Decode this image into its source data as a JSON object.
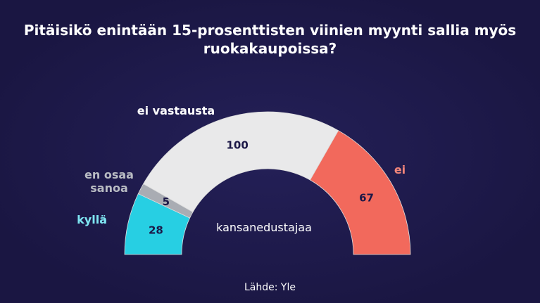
{
  "chart_data": {
    "type": "pie",
    "subtype": "semicircle-donut",
    "title": "Pitäisikö enintään 15-prosenttisten viinien myynti sallia myös ruokakaupoissa?",
    "center_label": "kansanedustajaa",
    "source": "Lähde: Yle",
    "slices": [
      {
        "label": "kyllä",
        "value": 28,
        "color": "#27cfe3",
        "label_color": "#7fe6f2"
      },
      {
        "label": "en osaa sanoa",
        "value": 5,
        "color": "#a9acb3",
        "label_color": "#b9bcc3"
      },
      {
        "label": "ei vastausta",
        "value": 100,
        "color": "#e9e9ea",
        "label_color": "#ffffff"
      },
      {
        "label": "ei",
        "value": 67,
        "color": "#f2695c",
        "label_color": "#f2857a"
      }
    ]
  }
}
